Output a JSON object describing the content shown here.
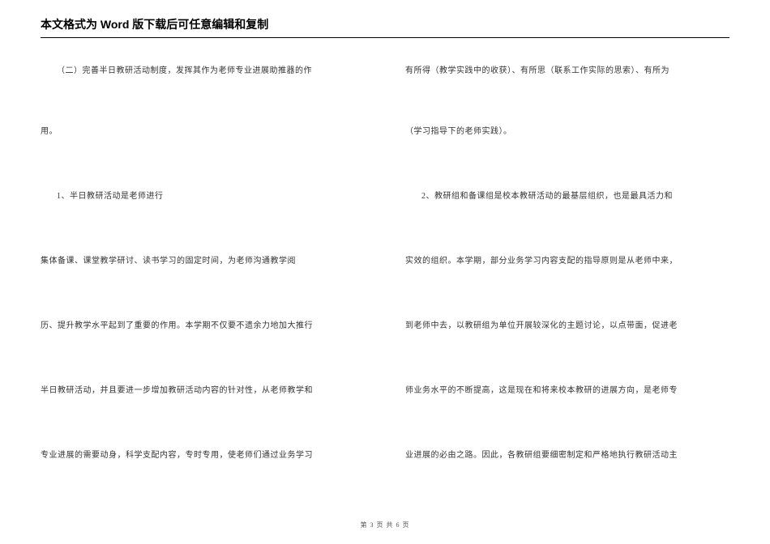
{
  "header": {
    "prefix": "本文格式为 ",
    "word": "Word",
    "suffix": " 版下载后可任意编辑和复制"
  },
  "left": {
    "p1": "（二）完善半日教研活动制度，发挥其作为老师专业进展助推器的作",
    "p2": "用。",
    "p3": "1、半日教研活动是老师进行",
    "p4": "集体备课、课堂教学研讨、读书学习的固定时间，为老师沟通教学阅",
    "p5": "历、提升教学水平起到了重要的作用。本学期不仅要不遗余力地加大推行",
    "p6": "半日教研活动，并且要进一步增加教研活动内容的针对性，从老师教学和",
    "p7": "专业进展的需要动身，科学支配内容，专时专用，使老师们通过业务学习"
  },
  "right": {
    "p1": "有所得（教学实践中的收获）、有所思（联系工作实际的思索）、有所为",
    "p2": "（学习指导下的老师实践）。",
    "p3": "2、教研组和备课组是校本教研活动的最基层组织，也是最具活力和",
    "p4": "实效的组织。本学期，部分业务学习内容支配的指导原则是从老师中来，",
    "p5": "到老师中去，以教研组为单位开展较深化的主题讨论，以点带面，促进老",
    "p6": "师业务水平的不断提高，这是现在和将来校本教研的进展方向，是老师专",
    "p7": "业进展的必由之路。因此，各教研组要细密制定和严格地执行教研活动主"
  },
  "footer": {
    "text": "第 3 页 共 6 页"
  },
  "layout": {
    "row_tops": [
      0,
      75,
      155,
      235,
      315,
      395,
      475
    ]
  }
}
